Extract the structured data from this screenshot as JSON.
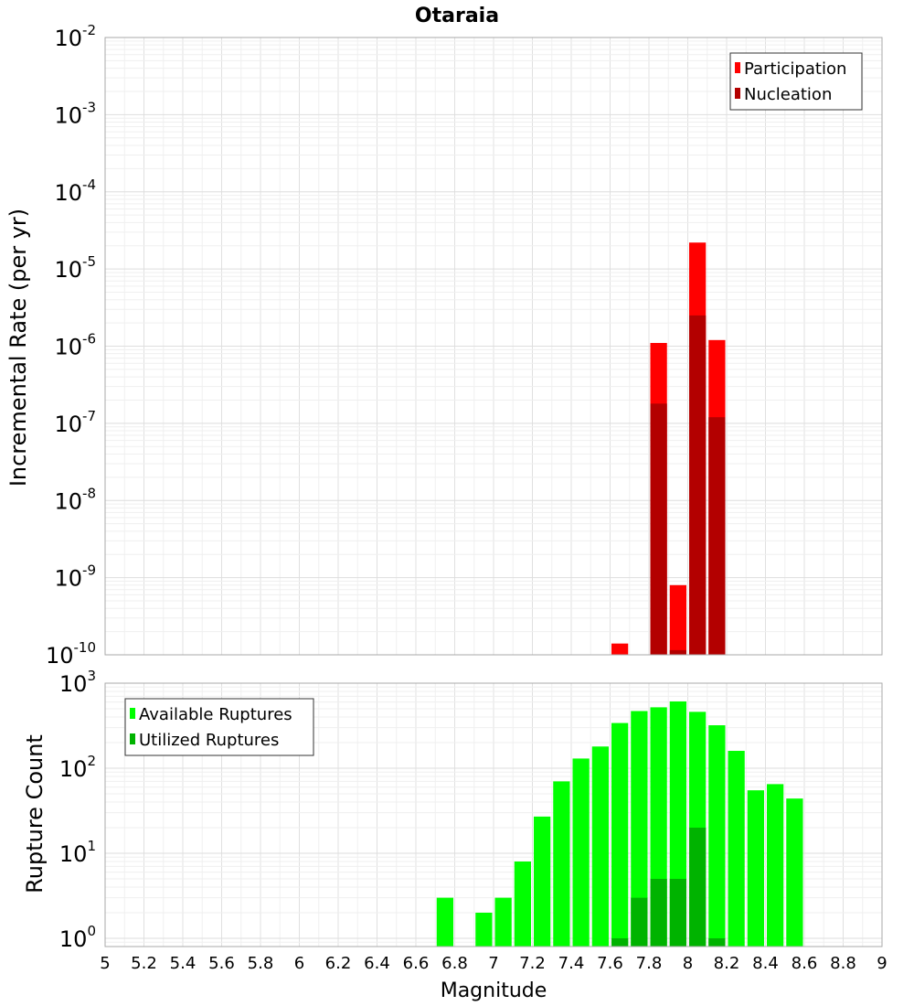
{
  "title": "Otaraia",
  "colors": {
    "participation": "#ff0000",
    "nucleation": "#b30000",
    "available": "#00ff00",
    "utilized": "#00b300",
    "grid": "#e8e8e8",
    "frame": "#aaaaaa"
  },
  "chart_data": [
    {
      "type": "bar",
      "panel": "top",
      "title": "Otaraia",
      "xlabel": "",
      "ylabel": "Incremental Rate (per yr)",
      "yscale": "log",
      "ylim": [
        1e-10,
        0.01
      ],
      "ytick_exponents": [
        -10,
        -9,
        -8,
        -7,
        -6,
        -5,
        -4,
        -3,
        -2
      ],
      "xlim": [
        5,
        9
      ],
      "bin_width": 0.1,
      "grid": true,
      "legend_position": "top-right",
      "series": [
        {
          "name": "Participation",
          "x": [
            7.65,
            7.85,
            7.95,
            8.05,
            8.15
          ],
          "values": [
            1.4e-10,
            1.1e-06,
            8e-10,
            2.2e-05,
            1.2e-06
          ]
        },
        {
          "name": "Nucleation",
          "x": [
            7.85,
            7.95,
            8.05,
            8.15
          ],
          "values": [
            1.8e-07,
            1.15e-10,
            2.5e-06,
            1.2e-07
          ]
        }
      ]
    },
    {
      "type": "bar",
      "panel": "bottom",
      "xlabel": "Magnitude",
      "ylabel": "Rupture Count",
      "yscale": "log",
      "ylim": [
        0.8,
        1000
      ],
      "ytick_exponents": [
        0,
        1,
        2,
        3
      ],
      "xlim": [
        5,
        9
      ],
      "xticks": [
        "5",
        "5.2",
        "5.4",
        "5.6",
        "5.8",
        "6",
        "6.2",
        "6.4",
        "6.6",
        "6.8",
        "7",
        "7.2",
        "7.4",
        "7.6",
        "7.8",
        "8",
        "8.2",
        "8.4",
        "8.6",
        "8.8",
        "9"
      ],
      "bin_width": 0.1,
      "grid": true,
      "legend_position": "top-left",
      "series": [
        {
          "name": "Available Ruptures",
          "x": [
            6.75,
            6.95,
            7.05,
            7.15,
            7.25,
            7.35,
            7.45,
            7.55,
            7.65,
            7.75,
            7.85,
            7.95,
            8.05,
            8.15,
            8.25,
            8.35,
            8.45,
            8.55
          ],
          "values": [
            3,
            2,
            3,
            8,
            27,
            70,
            130,
            180,
            340,
            470,
            520,
            610,
            460,
            320,
            160,
            55,
            65,
            44
          ]
        },
        {
          "name": "Utilized Ruptures",
          "x": [
            7.65,
            7.75,
            7.85,
            7.95,
            8.05,
            8.15
          ],
          "values": [
            1,
            3,
            5,
            5,
            20,
            1
          ]
        }
      ]
    }
  ]
}
